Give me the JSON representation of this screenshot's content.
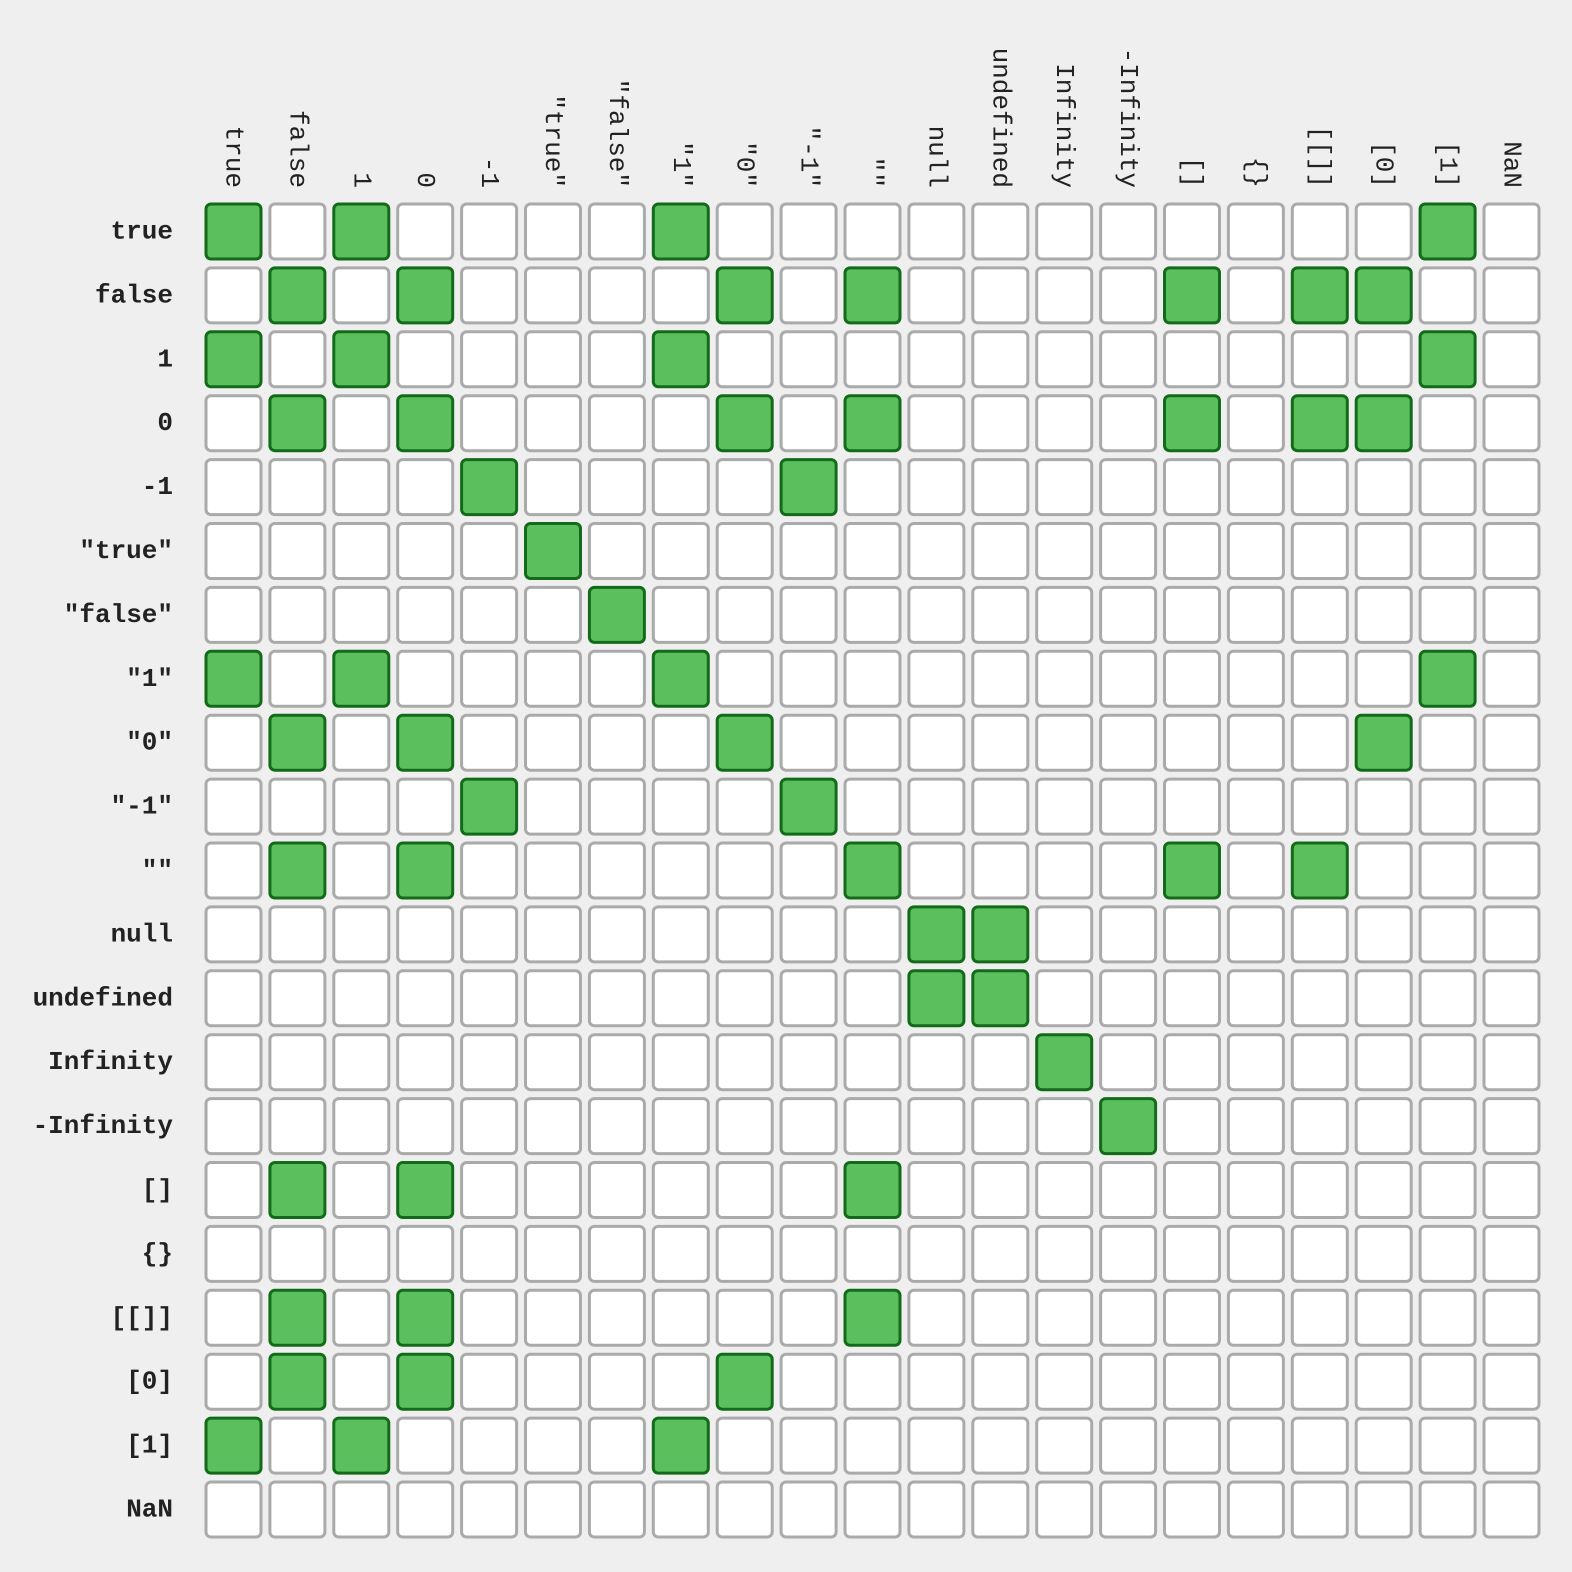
{
  "colors": {
    "background": "#efefef",
    "cell_true_fill": "#5cbf5e",
    "cell_true_stroke": "#136b1a",
    "cell_false_fill": "#ffffff",
    "cell_false_stroke": "#aaaaaa",
    "label_text": "#222222"
  },
  "chart_data": {
    "type": "heatmap",
    "title": "",
    "legend": "none",
    "columns": [
      "true",
      "false",
      "1",
      "0",
      "-1",
      "\"true\"",
      "\"false\"",
      "\"1\"",
      "\"0\"",
      "\"-1\"",
      "\"\"",
      "null",
      "undefined",
      "Infinity",
      "-Infinity",
      "[]",
      "{}",
      "[[]]",
      "[0]",
      "[1]",
      "NaN"
    ],
    "rows": [
      "true",
      "false",
      "1",
      "0",
      "-1",
      "\"true\"",
      "\"false\"",
      "\"1\"",
      "\"0\"",
      "\"-1\"",
      "\"\"",
      "null",
      "undefined",
      "Infinity",
      "-Infinity",
      "[]",
      "{}",
      "[[]]",
      "[0]",
      "[1]",
      "NaN"
    ],
    "values": [
      [
        1,
        0,
        1,
        0,
        0,
        0,
        0,
        1,
        0,
        0,
        0,
        0,
        0,
        0,
        0,
        0,
        0,
        0,
        0,
        1,
        0
      ],
      [
        0,
        1,
        0,
        1,
        0,
        0,
        0,
        0,
        1,
        0,
        1,
        0,
        0,
        0,
        0,
        1,
        0,
        1,
        1,
        0,
        0
      ],
      [
        1,
        0,
        1,
        0,
        0,
        0,
        0,
        1,
        0,
        0,
        0,
        0,
        0,
        0,
        0,
        0,
        0,
        0,
        0,
        1,
        0
      ],
      [
        0,
        1,
        0,
        1,
        0,
        0,
        0,
        0,
        1,
        0,
        1,
        0,
        0,
        0,
        0,
        1,
        0,
        1,
        1,
        0,
        0
      ],
      [
        0,
        0,
        0,
        0,
        1,
        0,
        0,
        0,
        0,
        1,
        0,
        0,
        0,
        0,
        0,
        0,
        0,
        0,
        0,
        0,
        0
      ],
      [
        0,
        0,
        0,
        0,
        0,
        1,
        0,
        0,
        0,
        0,
        0,
        0,
        0,
        0,
        0,
        0,
        0,
        0,
        0,
        0,
        0
      ],
      [
        0,
        0,
        0,
        0,
        0,
        0,
        1,
        0,
        0,
        0,
        0,
        0,
        0,
        0,
        0,
        0,
        0,
        0,
        0,
        0,
        0
      ],
      [
        1,
        0,
        1,
        0,
        0,
        0,
        0,
        1,
        0,
        0,
        0,
        0,
        0,
        0,
        0,
        0,
        0,
        0,
        0,
        1,
        0
      ],
      [
        0,
        1,
        0,
        1,
        0,
        0,
        0,
        0,
        1,
        0,
        0,
        0,
        0,
        0,
        0,
        0,
        0,
        0,
        1,
        0,
        0
      ],
      [
        0,
        0,
        0,
        0,
        1,
        0,
        0,
        0,
        0,
        1,
        0,
        0,
        0,
        0,
        0,
        0,
        0,
        0,
        0,
        0,
        0
      ],
      [
        0,
        1,
        0,
        1,
        0,
        0,
        0,
        0,
        0,
        0,
        1,
        0,
        0,
        0,
        0,
        1,
        0,
        1,
        0,
        0,
        0
      ],
      [
        0,
        0,
        0,
        0,
        0,
        0,
        0,
        0,
        0,
        0,
        0,
        1,
        1,
        0,
        0,
        0,
        0,
        0,
        0,
        0,
        0
      ],
      [
        0,
        0,
        0,
        0,
        0,
        0,
        0,
        0,
        0,
        0,
        0,
        1,
        1,
        0,
        0,
        0,
        0,
        0,
        0,
        0,
        0
      ],
      [
        0,
        0,
        0,
        0,
        0,
        0,
        0,
        0,
        0,
        0,
        0,
        0,
        0,
        1,
        0,
        0,
        0,
        0,
        0,
        0,
        0
      ],
      [
        0,
        0,
        0,
        0,
        0,
        0,
        0,
        0,
        0,
        0,
        0,
        0,
        0,
        0,
        1,
        0,
        0,
        0,
        0,
        0,
        0
      ],
      [
        0,
        1,
        0,
        1,
        0,
        0,
        0,
        0,
        0,
        0,
        1,
        0,
        0,
        0,
        0,
        0,
        0,
        0,
        0,
        0,
        0
      ],
      [
        0,
        0,
        0,
        0,
        0,
        0,
        0,
        0,
        0,
        0,
        0,
        0,
        0,
        0,
        0,
        0,
        0,
        0,
        0,
        0,
        0
      ],
      [
        0,
        1,
        0,
        1,
        0,
        0,
        0,
        0,
        0,
        0,
        1,
        0,
        0,
        0,
        0,
        0,
        0,
        0,
        0,
        0,
        0
      ],
      [
        0,
        1,
        0,
        1,
        0,
        0,
        0,
        0,
        1,
        0,
        0,
        0,
        0,
        0,
        0,
        0,
        0,
        0,
        0,
        0,
        0
      ],
      [
        1,
        0,
        1,
        0,
        0,
        0,
        0,
        1,
        0,
        0,
        0,
        0,
        0,
        0,
        0,
        0,
        0,
        0,
        0,
        0,
        0
      ],
      [
        0,
        0,
        0,
        0,
        0,
        0,
        0,
        0,
        0,
        0,
        0,
        0,
        0,
        0,
        0,
        0,
        0,
        0,
        0,
        0,
        0
      ]
    ]
  }
}
